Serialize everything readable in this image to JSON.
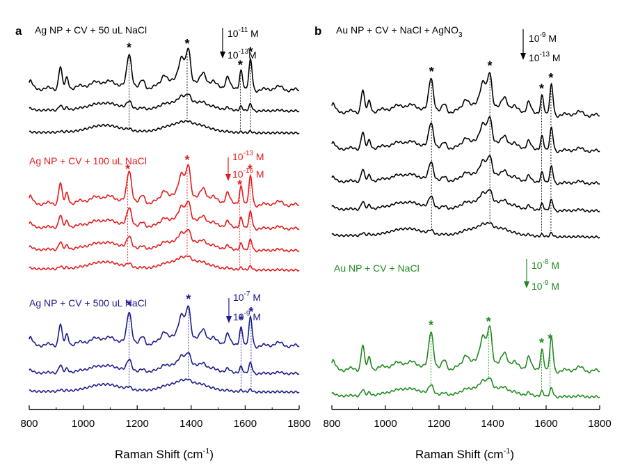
{
  "chart_data": [
    {
      "panel": "a",
      "type": "line",
      "xlabel": "Raman Shift (cm",
      "xlabel_sup": "-1",
      "xlabel_end": ")",
      "xlim": [
        800,
        1800
      ],
      "xticks": [
        "800",
        "1000",
        "1200",
        "1400",
        "1600",
        "1800"
      ],
      "groups": [
        {
          "title": "Ag NP + CV + 50 uL NaCl",
          "color": "#000000",
          "conc_top": "10",
          "conc_top_exp": "-11",
          "conc_top_unit": " M",
          "conc_bottom": "10",
          "conc_bottom_exp": "-13",
          "conc_bottom_unit": "M",
          "marked_peaks": [
            1170,
            1385,
            1582,
            1620
          ],
          "spectra": [
            {
              "base": 127,
              "slope": 0.05,
              "scale": 1.0
            },
            {
              "base": 158,
              "slope": 0.03,
              "scale": 0.22
            },
            {
              "base": 190,
              "slope": 0.02,
              "scale": 0.05
            }
          ]
        },
        {
          "title": "Ag NP + CV + 100 uL NaCl",
          "color": "#e8191a",
          "conc_top": "10",
          "conc_top_exp": "-13",
          "conc_top_unit": " M",
          "conc_bottom": "10",
          "conc_bottom_exp": "-16",
          "conc_bottom_unit": " M",
          "marked_peaks": [
            1165,
            1385,
            1580,
            1618
          ],
          "spectra": [
            {
              "base": 292,
              "slope": 0.05,
              "scale": 0.95
            },
            {
              "base": 326,
              "slope": 0.05,
              "scale": 0.55
            },
            {
              "base": 358,
              "slope": 0.04,
              "scale": 0.35
            },
            {
              "base": 386,
              "slope": 0.04,
              "scale": 0.12
            }
          ]
        },
        {
          "title": "Ag NP + CV + 500 uL NaCl",
          "color": "#1a1a8c",
          "conc_top": "10",
          "conc_top_exp": "-7",
          "conc_top_unit": " M",
          "conc_bottom": "10",
          "conc_bottom_exp": "-9",
          "conc_bottom_unit": " M",
          "marked_peaks": [
            1170,
            1390,
            1585,
            1622
          ],
          "spectra": [
            {
              "base": 495,
              "slope": 0.04,
              "scale": 0.95
            },
            {
              "base": 535,
              "slope": 0.03,
              "scale": 0.35
            },
            {
              "base": 562,
              "slope": 0.02,
              "scale": 0.08
            }
          ]
        }
      ]
    },
    {
      "panel": "b",
      "type": "line",
      "xlabel": "Raman Shift (cm",
      "xlabel_sup": "-1",
      "xlabel_end": ")",
      "xlim": [
        800,
        1800
      ],
      "xticks": [
        "800",
        "1000",
        "1200",
        "1400",
        "1600",
        "1800"
      ],
      "groups": [
        {
          "title": "Au NP + CV + NaCl + AgNO",
          "title_sub": "3",
          "color": "#000000",
          "conc_top": "10",
          "conc_top_exp": "-9",
          "conc_top_unit": " M",
          "conc_bottom": "10",
          "conc_bottom_exp": "-13",
          "conc_bottom_unit": " M",
          "marked_peaks": [
            1172,
            1390,
            1583,
            1618
          ],
          "spectra": [
            {
              "base": 160,
              "slope": 0.12,
              "scale": 1.0
            },
            {
              "base": 213,
              "slope": 0.08,
              "scale": 0.75
            },
            {
              "base": 260,
              "slope": 0.07,
              "scale": 0.55
            },
            {
              "base": 300,
              "slope": 0.06,
              "scale": 0.35
            },
            {
              "base": 338,
              "slope": 0.05,
              "scale": 0.12
            }
          ]
        },
        {
          "title": "Au NP + CV + NaCl",
          "color": "#1f8a1f",
          "conc_top": "10",
          "conc_top_exp": "-8",
          "conc_top_unit": " M",
          "conc_bottom": "10",
          "conc_bottom_exp": "-9",
          "conc_bottom_unit": " M",
          "marked_peaks": [
            1170,
            1385,
            1583,
            1615
          ],
          "spectra": [
            {
              "base": 530,
              "slope": 0.06,
              "scale": 1.1
            },
            {
              "base": 568,
              "slope": 0.04,
              "scale": 0.28
            }
          ]
        }
      ]
    }
  ]
}
